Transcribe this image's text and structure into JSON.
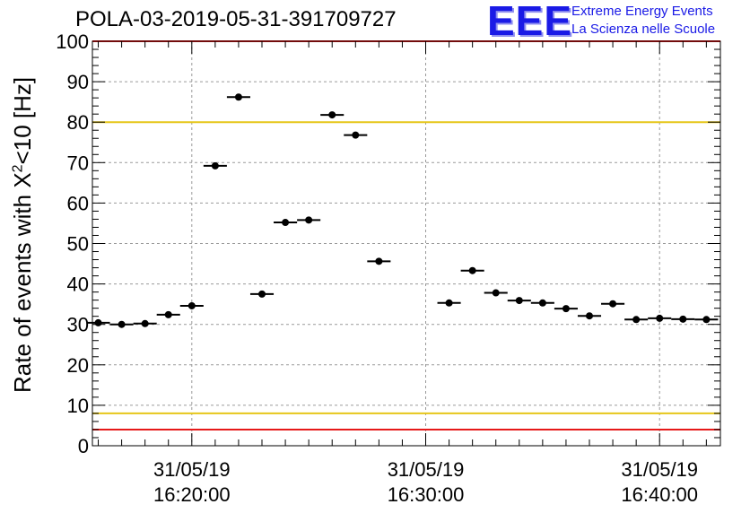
{
  "header": {
    "title": "POLA-03-2019-05-31-391709727"
  },
  "logo": {
    "mark": "EEE",
    "line1": "Extreme Energy Events",
    "line2": "La Scienza nelle Scuole"
  },
  "chart_data": {
    "type": "scatter",
    "title": "POLA-03-2019-05-31-391709727",
    "ylabel_prefix": "Rate of events with X",
    "ylabel_superscript": "2",
    "ylabel_suffix": "<10 [Hz]",
    "xlabel": "",
    "ylim": [
      0,
      100
    ],
    "yticks": [
      0,
      10,
      20,
      30,
      40,
      50,
      60,
      70,
      80,
      90,
      100
    ],
    "xlim_minutes": [
      15.75,
      42.6
    ],
    "xticks": [
      {
        "minute": 20,
        "date": "31/05/19",
        "time": "16:20:00"
      },
      {
        "minute": 30,
        "date": "31/05/19",
        "time": "16:30:00"
      },
      {
        "minute": 40,
        "date": "31/05/19",
        "time": "16:40:00"
      }
    ],
    "bin_width_minutes": 1.0,
    "points": [
      {
        "x": 16.0,
        "y": 30.4
      },
      {
        "x": 17.0,
        "y": 30.0
      },
      {
        "x": 18.0,
        "y": 30.2
      },
      {
        "x": 19.0,
        "y": 32.4
      },
      {
        "x": 20.0,
        "y": 34.6
      },
      {
        "x": 21.0,
        "y": 69.2
      },
      {
        "x": 22.0,
        "y": 86.2
      },
      {
        "x": 23.0,
        "y": 37.5
      },
      {
        "x": 24.0,
        "y": 55.2
      },
      {
        "x": 25.0,
        "y": 55.8
      },
      {
        "x": 26.0,
        "y": 81.8
      },
      {
        "x": 27.0,
        "y": 76.8
      },
      {
        "x": 28.0,
        "y": 45.6
      },
      {
        "x": 31.0,
        "y": 35.3
      },
      {
        "x": 32.0,
        "y": 43.3
      },
      {
        "x": 33.0,
        "y": 37.8
      },
      {
        "x": 34.0,
        "y": 35.9
      },
      {
        "x": 35.0,
        "y": 35.3
      },
      {
        "x": 36.0,
        "y": 33.9
      },
      {
        "x": 37.0,
        "y": 32.1
      },
      {
        "x": 38.0,
        "y": 35.1
      },
      {
        "x": 39.0,
        "y": 31.2
      },
      {
        "x": 40.0,
        "y": 31.5
      },
      {
        "x": 41.0,
        "y": 31.3
      },
      {
        "x": 42.0,
        "y": 31.2
      }
    ],
    "reference_lines": [
      {
        "y": 80,
        "color": "#e6c619"
      },
      {
        "y": 8,
        "color": "#e6c619"
      },
      {
        "y": 100,
        "color": "#e61919"
      },
      {
        "y": 4,
        "color": "#e61919"
      }
    ],
    "grid": true
  }
}
